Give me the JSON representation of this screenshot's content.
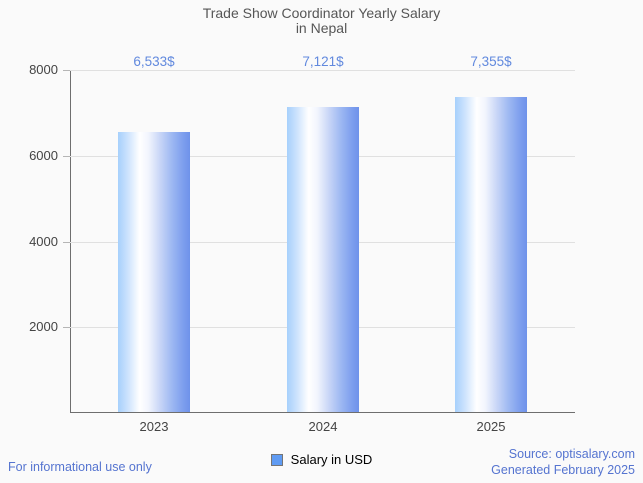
{
  "title": {
    "line1": "Trade Show Coordinator Yearly Salary",
    "line2": "in Nepal"
  },
  "chart_data": {
    "type": "bar",
    "categories": [
      "2023",
      "2024",
      "2025"
    ],
    "values": [
      6533,
      7121,
      7355
    ],
    "value_labels": [
      "6,533$",
      "7,121$",
      "7,355$"
    ],
    "series": [
      {
        "name": "Salary in USD",
        "values": [
          6533,
          7121,
          7355
        ]
      }
    ],
    "title": "Trade Show Coordinator Yearly Salary in Nepal",
    "xlabel": "",
    "ylabel": "",
    "ylim": [
      0,
      8000
    ],
    "yticks": [
      2000,
      4000,
      6000,
      8000
    ],
    "grid": true,
    "legend_position": "bottom"
  },
  "legend": {
    "label": "Salary in USD"
  },
  "footer": {
    "left": "For informational use only",
    "source": "Source: optisalary.com",
    "generated": "Generated February 2025"
  },
  "colors": {
    "background": "#fafafa",
    "title_text": "#565656",
    "axis_text": "#444444",
    "axis_line": "#6e6e6e",
    "gridline": "#e0e0e0",
    "value_label": "#6189de",
    "footer_text": "#5574d0",
    "bar_gradient_left": "#a6d0fc",
    "bar_gradient_mid": "#ffffff",
    "bar_gradient_right": "#6e92ea",
    "legend_swatch": "#5f9bf3"
  }
}
